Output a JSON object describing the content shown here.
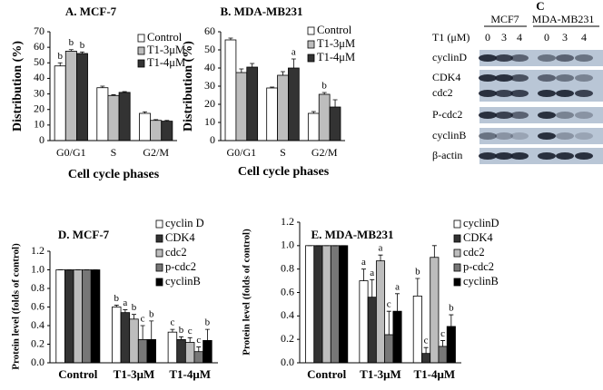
{
  "chart_data": [
    {
      "type": "bar",
      "title": "A. MCF-7",
      "x_label": "Cell cycle phases",
      "y_label": "Distribution (%)",
      "categories": [
        "G0/G1",
        "S",
        "G2/M"
      ],
      "ylim": [
        0,
        70
      ],
      "yticks": [
        0,
        10,
        20,
        30,
        40,
        50,
        60,
        70
      ],
      "series": [
        {
          "name": "Control",
          "color": "#ffffff",
          "values": [
            48,
            34,
            17.5
          ],
          "errors": [
            2,
            1,
            1
          ],
          "annotations": [
            "b",
            null,
            null
          ]
        },
        {
          "name": "T1-3μM",
          "color": "#bdbdbd",
          "values": [
            57.5,
            29,
            13
          ],
          "errors": [
            1,
            0.5,
            0.5
          ],
          "annotations": [
            "b",
            null,
            null
          ]
        },
        {
          "name": "T1-4μM",
          "color": "#333333",
          "values": [
            56,
            31,
            12.5
          ],
          "errors": [
            1,
            0.5,
            0.5
          ],
          "annotations": [
            "b",
            null,
            null
          ]
        }
      ]
    },
    {
      "type": "bar",
      "title": "B. MDA-MB231",
      "x_label": "Cell cycle phases",
      "y_label": "Distribution (%)",
      "categories": [
        "G0/G1",
        "S",
        "G2/M"
      ],
      "ylim": [
        0,
        60
      ],
      "yticks": [
        0,
        10,
        20,
        30,
        40,
        50,
        60
      ],
      "series": [
        {
          "name": "Control",
          "color": "#ffffff",
          "values": [
            55.5,
            29,
            15
          ],
          "errors": [
            1,
            0.5,
            1
          ],
          "annotations": [
            null,
            null,
            null
          ]
        },
        {
          "name": "T1-3μM",
          "color": "#bdbdbd",
          "values": [
            37.5,
            36,
            25.5
          ],
          "errors": [
            2,
            2,
            1
          ],
          "annotations": [
            null,
            null,
            "b"
          ]
        },
        {
          "name": "T1-4μM",
          "color": "#333333",
          "values": [
            40.5,
            40,
            18.5
          ],
          "errors": [
            2,
            5,
            4
          ],
          "annotations": [
            null,
            "a",
            null
          ]
        }
      ]
    },
    {
      "type": "bar",
      "title": "D. MCF-7",
      "y_label": "Protein level (folds of control)",
      "categories": [
        "Control",
        "T1-3μM",
        "T1-4μM"
      ],
      "ylim": [
        0,
        1.2
      ],
      "yticks": [
        {
          "value": 0,
          "label": "0.0"
        },
        0.2,
        0.4,
        0.6,
        0.8,
        {
          "value": 1,
          "label": "1.0"
        },
        1.2
      ],
      "series": [
        {
          "name": "cyclin D",
          "color": "#ffffff",
          "values": [
            1,
            0.6,
            0.33
          ],
          "errors": [
            0,
            0.02,
            0.03
          ],
          "annotations": [
            null,
            "b",
            "c"
          ]
        },
        {
          "name": "CDK4",
          "color": "#333333",
          "values": [
            1,
            0.54,
            0.25
          ],
          "errors": [
            0,
            0.03,
            0.03
          ],
          "annotations": [
            null,
            "a",
            "b"
          ]
        },
        {
          "name": "cdc2",
          "color": "#bdbdbd",
          "values": [
            1,
            0.47,
            0.22
          ],
          "errors": [
            0,
            0.05,
            0.05
          ],
          "annotations": [
            null,
            "b",
            "c"
          ]
        },
        {
          "name": "p-cdc2",
          "color": "#777777",
          "values": [
            1,
            0.25,
            0.12
          ],
          "errors": [
            0,
            0.15,
            0.05
          ],
          "annotations": [
            null,
            "c",
            "c"
          ]
        },
        {
          "name": "cyclinB",
          "color": "#000000",
          "values": [
            1,
            0.25,
            0.24
          ],
          "errors": [
            0,
            0.2,
            0.12
          ],
          "annotations": [
            null,
            "b",
            "b"
          ]
        }
      ]
    },
    {
      "type": "bar",
      "title": "E. MDA-MB231",
      "y_label": "Protein level (folds of control)",
      "categories": [
        "Control",
        "T1-3μM",
        "T1-4μM"
      ],
      "ylim": [
        0,
        1.2
      ],
      "yticks": [
        {
          "value": 0,
          "label": "0.0"
        },
        0.2,
        0.4,
        0.6,
        0.8,
        {
          "value": 1,
          "label": "1.0"
        },
        1.2
      ],
      "series": [
        {
          "name": "cyclinD",
          "color": "#ffffff",
          "values": [
            1,
            0.7,
            0.57
          ],
          "errors": [
            0,
            0.1,
            0.15
          ],
          "annotations": [
            null,
            "a",
            "b"
          ]
        },
        {
          "name": "CDK4",
          "color": "#333333",
          "values": [
            1,
            0.56,
            0.08
          ],
          "errors": [
            0,
            0.15,
            0.05
          ],
          "annotations": [
            null,
            "a",
            "c"
          ]
        },
        {
          "name": "cdc2",
          "color": "#bdbdbd",
          "values": [
            1,
            0.87,
            0.9
          ],
          "errors": [
            0,
            0.05,
            0.1
          ],
          "annotations": [
            null,
            "a",
            null
          ]
        },
        {
          "name": "p-cdc2",
          "color": "#777777",
          "values": [
            1,
            0.24,
            0.14
          ],
          "errors": [
            0,
            0.2,
            0.05
          ],
          "annotations": [
            null,
            "c",
            "c"
          ]
        },
        {
          "name": "cyclinB",
          "color": "#000000",
          "values": [
            1,
            0.44,
            0.31
          ],
          "errors": [
            0,
            0.15,
            0.1
          ],
          "annotations": [
            null,
            "a",
            "b"
          ]
        }
      ]
    }
  ],
  "blot": {
    "title": "C",
    "groups": [
      "MCF7",
      "MDA-MB231"
    ],
    "dose_label": "T1 (μM)",
    "doses": [
      "0",
      "3",
      "4",
      "0",
      "3",
      "4"
    ],
    "rows": [
      "cyclinD",
      "CDK4",
      "cdc2",
      "P-cdc2",
      "cyclinB",
      "β-actin"
    ]
  }
}
